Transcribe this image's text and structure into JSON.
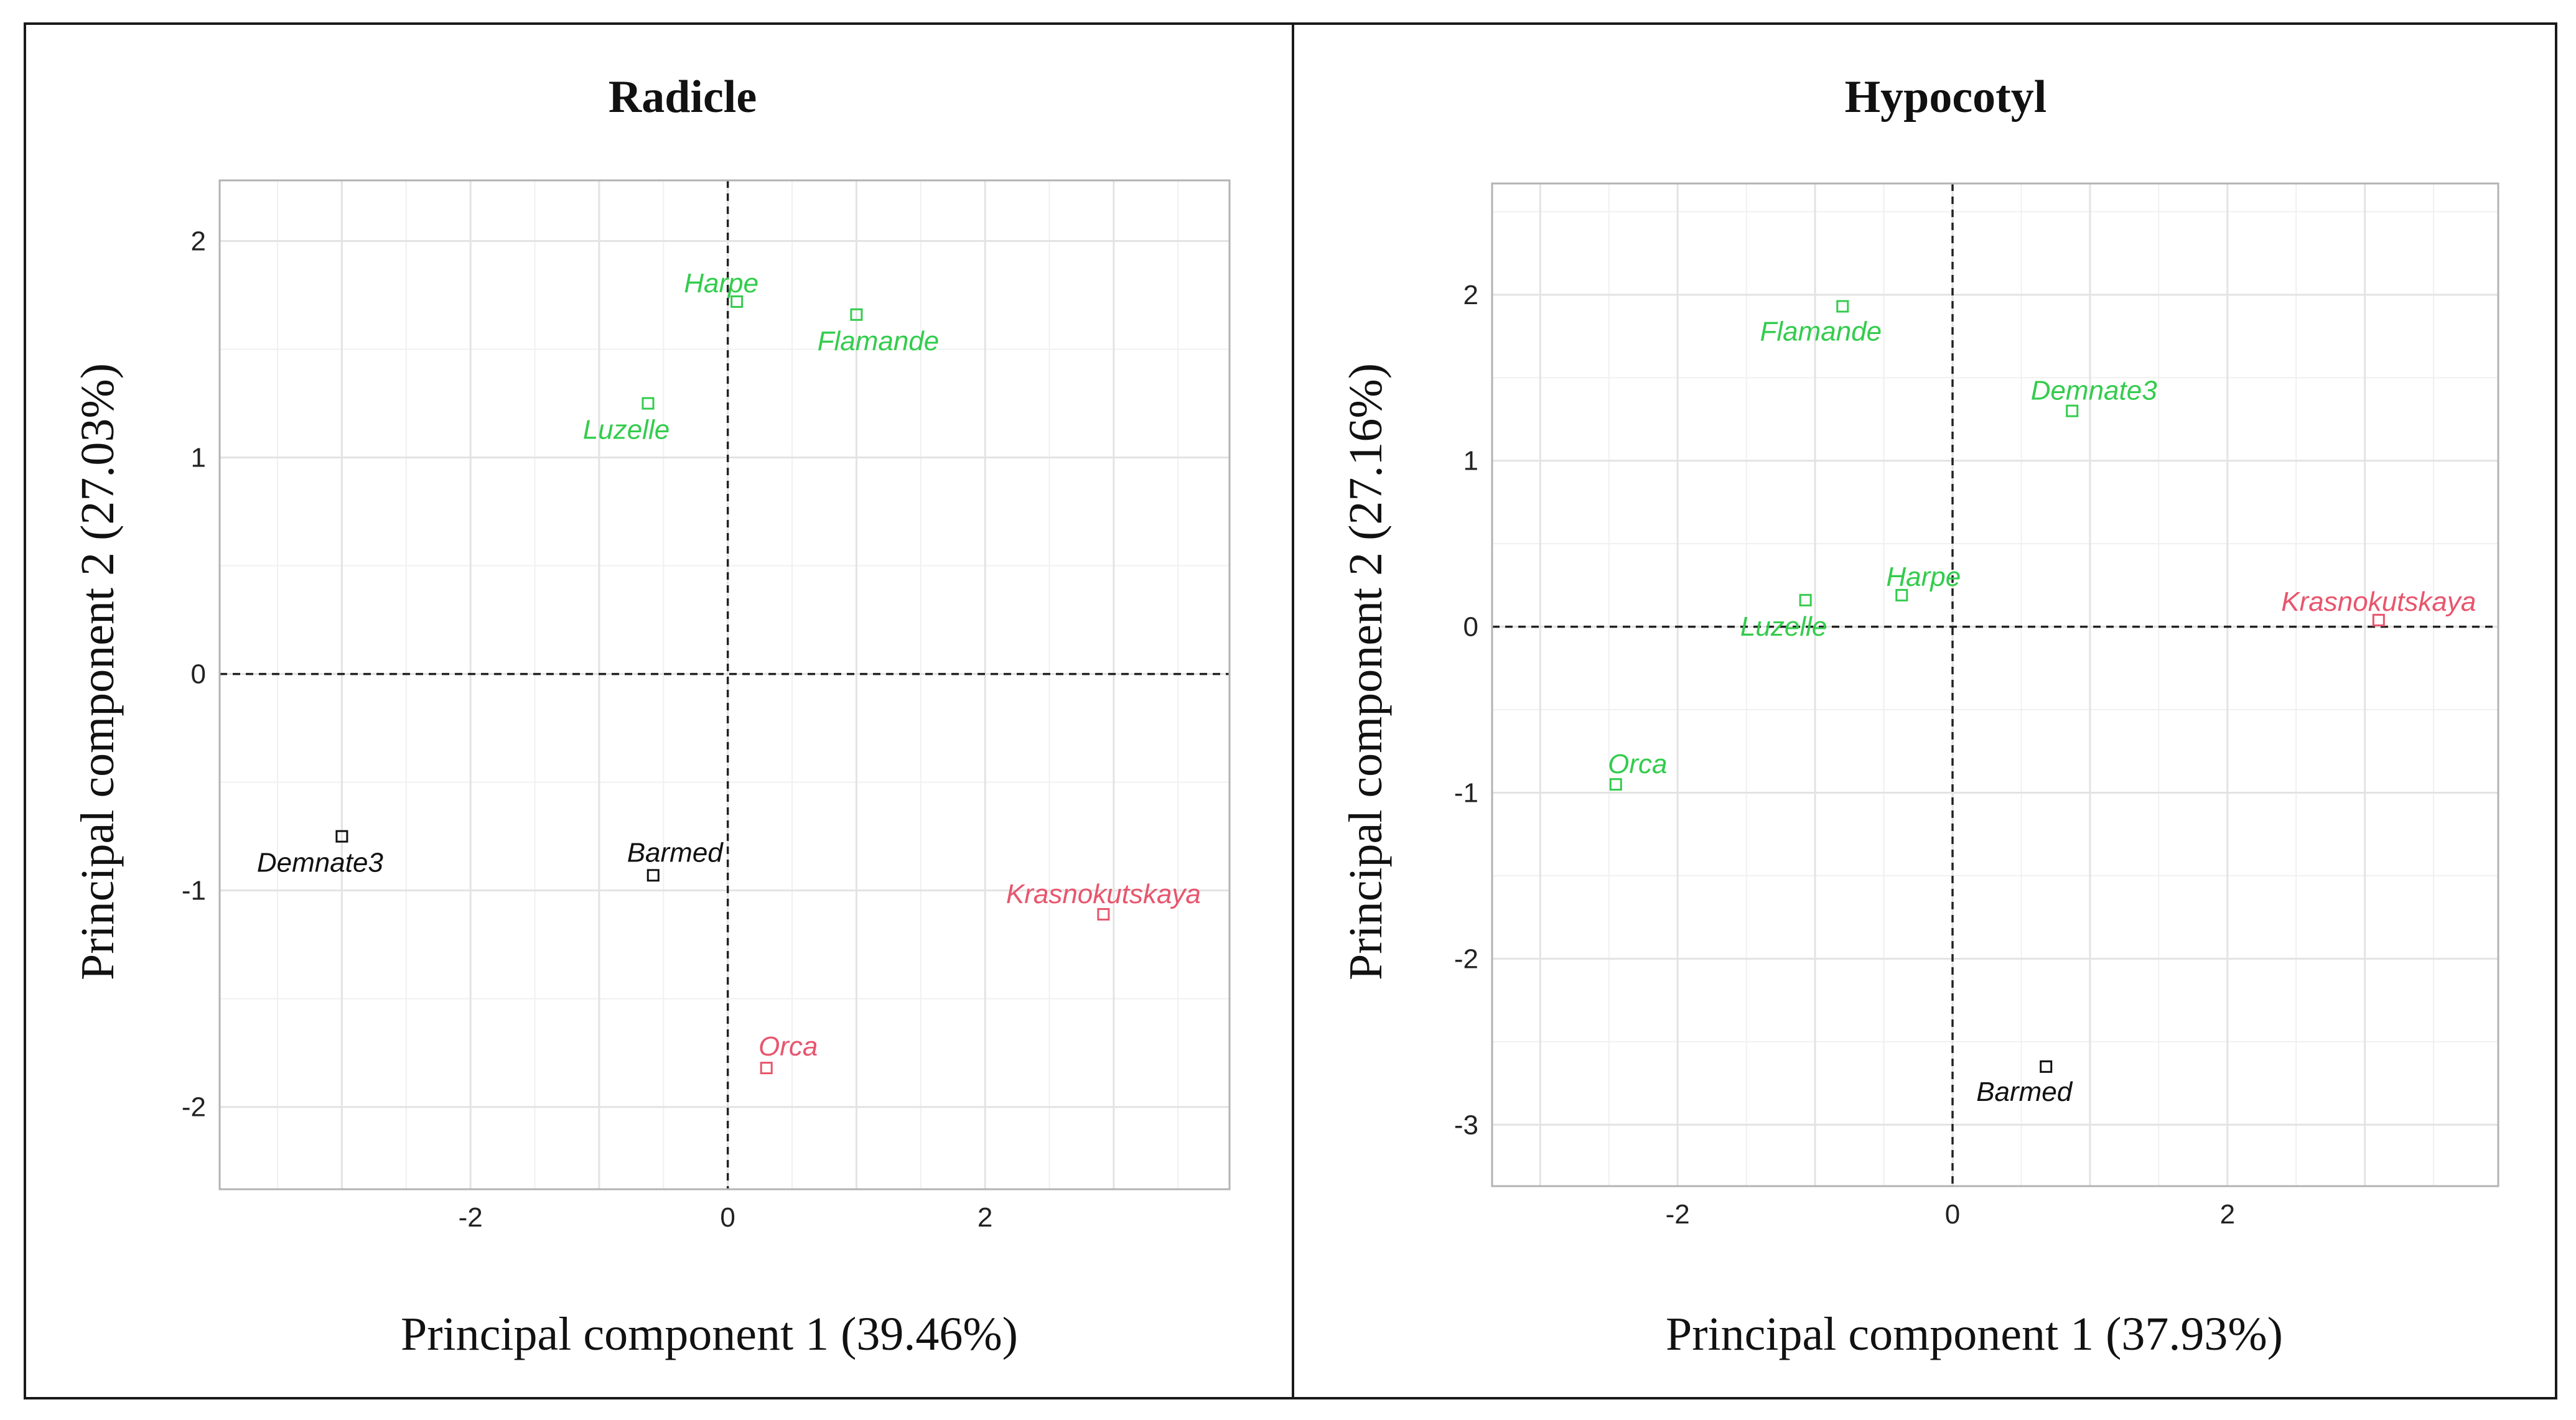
{
  "chart_data": [
    {
      "type": "scatter",
      "title": "Radicle",
      "xlabel": "Principal component 1 (39.46%)",
      "ylabel": "Principal component 2 (27.03%)",
      "xlim": [
        -3.95,
        3.9
      ],
      "ylim": [
        -2.38,
        2.28
      ],
      "xticks": [
        -2,
        0,
        2
      ],
      "yticks": [
        -2,
        -1,
        0,
        1,
        2
      ],
      "zero_lines": true,
      "points": [
        {
          "label": "Harpe",
          "x": 0.07,
          "y": 1.72,
          "group": "green"
        },
        {
          "label": "Flamande",
          "x": 1.0,
          "y": 1.66,
          "group": "green"
        },
        {
          "label": "Luzelle",
          "x": -0.62,
          "y": 1.25,
          "group": "green"
        },
        {
          "label": "Demnate3",
          "x": -3.0,
          "y": -0.75,
          "group": "black"
        },
        {
          "label": "Barmed",
          "x": -0.58,
          "y": -0.93,
          "group": "black"
        },
        {
          "label": "Krasnokutskaya",
          "x": 2.92,
          "y": -1.11,
          "group": "red"
        },
        {
          "label": "Orca",
          "x": 0.3,
          "y": -1.82,
          "group": "red"
        }
      ]
    },
    {
      "type": "scatter",
      "title": "Hypocotyl",
      "xlabel": "Principal component 1 (37.93%)",
      "ylabel": "Principal component 2 (27.16%)",
      "xlim": [
        -3.35,
        3.97
      ],
      "ylim": [
        -3.37,
        2.67
      ],
      "xticks": [
        -2,
        0,
        2
      ],
      "yticks": [
        -3,
        -2,
        -1,
        0,
        1,
        2
      ],
      "zero_lines": true,
      "points": [
        {
          "label": "Flamande",
          "x": -0.8,
          "y": 1.93,
          "group": "green"
        },
        {
          "label": "Demnate3",
          "x": 0.87,
          "y": 1.3,
          "group": "green"
        },
        {
          "label": "Harpe",
          "x": -0.37,
          "y": 0.19,
          "group": "green"
        },
        {
          "label": "Luzelle",
          "x": -1.07,
          "y": 0.16,
          "group": "green"
        },
        {
          "label": "Krasnokutskaya",
          "x": 3.1,
          "y": 0.04,
          "group": "red"
        },
        {
          "label": "Orca",
          "x": -2.45,
          "y": -0.95,
          "group": "green"
        },
        {
          "label": "Barmed",
          "x": 0.68,
          "y": -2.65,
          "group": "black"
        }
      ]
    }
  ],
  "colors": {
    "green": "#33cc4d",
    "red": "#e8556d",
    "black": "#111111"
  }
}
